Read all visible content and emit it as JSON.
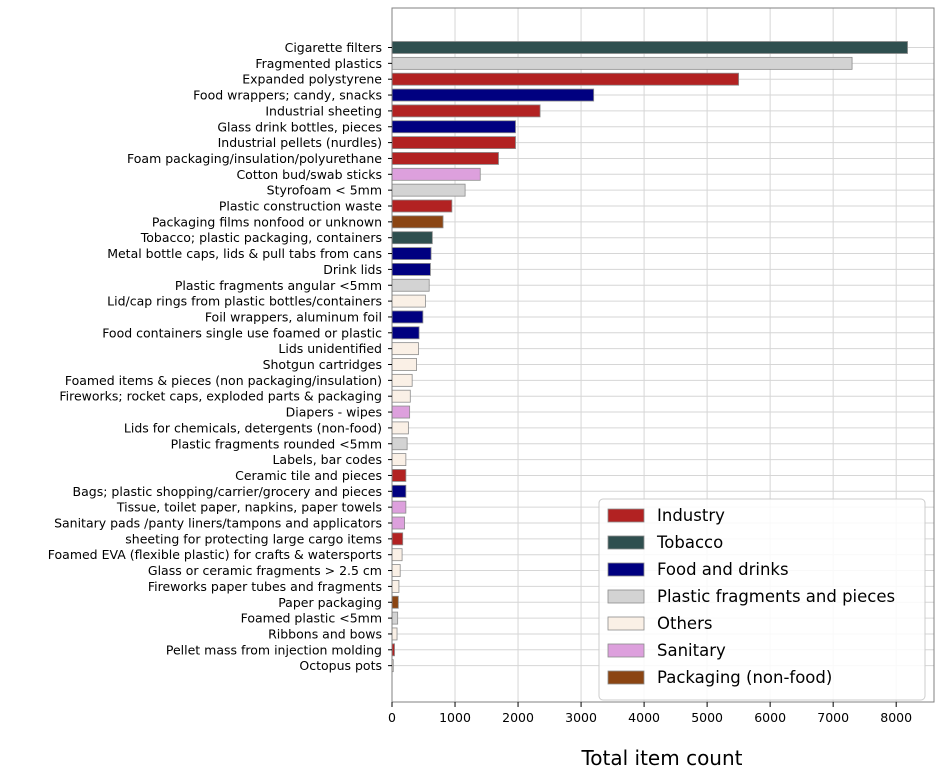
{
  "chart_data": {
    "type": "bar",
    "orientation": "horizontal",
    "xlabel": "Total item count",
    "xlim": [
      0,
      8600
    ],
    "xticks": [
      0,
      1000,
      2000,
      3000,
      4000,
      5000,
      6000,
      7000,
      8000
    ],
    "grid": true,
    "legend_position": "bottom-right",
    "groups": [
      {
        "name": "Industry",
        "color": "#b22222"
      },
      {
        "name": "Tobacco",
        "color": "#2f4f4f"
      },
      {
        "name": "Food and drinks",
        "color": "#000080"
      },
      {
        "name": "Plastic fragments and pieces",
        "color": "#d3d3d3"
      },
      {
        "name": "Others",
        "color": "#faf0e6"
      },
      {
        "name": "Sanitary",
        "color": "#dda0dd"
      },
      {
        "name": "Packaging (non-food)",
        "color": "#8b4513"
      }
    ],
    "bars": [
      {
        "label": "Cigarette filters",
        "value": 8180,
        "group": "Tobacco"
      },
      {
        "label": "Fragmented plastics",
        "value": 7300,
        "group": "Plastic fragments and pieces"
      },
      {
        "label": "Expanded polystyrene",
        "value": 5500,
        "group": "Industry"
      },
      {
        "label": "Food wrappers; candy, snacks",
        "value": 3200,
        "group": "Food and drinks"
      },
      {
        "label": "Industrial sheeting",
        "value": 2350,
        "group": "Industry"
      },
      {
        "label": "Glass drink bottles, pieces",
        "value": 1960,
        "group": "Food and drinks"
      },
      {
        "label": "Industrial pellets (nurdles)",
        "value": 1960,
        "group": "Industry"
      },
      {
        "label": "Foam packaging/insulation/polyurethane",
        "value": 1690,
        "group": "Industry"
      },
      {
        "label": "Cotton bud/swab sticks",
        "value": 1400,
        "group": "Sanitary"
      },
      {
        "label": "Styrofoam < 5mm",
        "value": 1160,
        "group": "Plastic fragments and pieces"
      },
      {
        "label": "Plastic construction waste",
        "value": 950,
        "group": "Industry"
      },
      {
        "label": "Packaging films nonfood or unknown",
        "value": 810,
        "group": "Packaging (non-food)"
      },
      {
        "label": "Tobacco; plastic packaging, containers",
        "value": 640,
        "group": "Tobacco"
      },
      {
        "label": "Metal bottle caps, lids & pull tabs from cans",
        "value": 620,
        "group": "Food and drinks"
      },
      {
        "label": "Drink lids",
        "value": 610,
        "group": "Food and drinks"
      },
      {
        "label": "Plastic fragments angular <5mm",
        "value": 590,
        "group": "Plastic fragments and pieces"
      },
      {
        "label": "Lid/cap rings from plastic bottles/containers",
        "value": 530,
        "group": "Others"
      },
      {
        "label": "Foil wrappers, aluminum foil",
        "value": 490,
        "group": "Food and drinks"
      },
      {
        "label": "Food containers single use foamed or plastic",
        "value": 430,
        "group": "Food and drinks"
      },
      {
        "label": "Lids unidentified",
        "value": 420,
        "group": "Others"
      },
      {
        "label": "Shotgun cartridges",
        "value": 390,
        "group": "Others"
      },
      {
        "label": "Foamed items & pieces (non packaging/insulation)",
        "value": 320,
        "group": "Others"
      },
      {
        "label": "Fireworks; rocket caps, exploded parts & packaging",
        "value": 290,
        "group": "Others"
      },
      {
        "label": "Diapers - wipes",
        "value": 280,
        "group": "Sanitary"
      },
      {
        "label": "Lids for chemicals, detergents (non-food)",
        "value": 260,
        "group": "Others"
      },
      {
        "label": "Plastic fragments rounded <5mm",
        "value": 240,
        "group": "Plastic fragments and pieces"
      },
      {
        "label": "Labels, bar codes",
        "value": 220,
        "group": "Others"
      },
      {
        "label": "Ceramic tile and pieces",
        "value": 220,
        "group": "Industry"
      },
      {
        "label": "Bags; plastic shopping/carrier/grocery and pieces",
        "value": 220,
        "group": "Food and drinks"
      },
      {
        "label": "Tissue, toilet paper, napkins, paper towels",
        "value": 220,
        "group": "Sanitary"
      },
      {
        "label": "Sanitary pads /panty liners/tampons and applicators",
        "value": 200,
        "group": "Sanitary"
      },
      {
        "label": "sheeting for protecting large cargo items",
        "value": 170,
        "group": "Industry"
      },
      {
        "label": "Foamed EVA (flexible plastic) for crafts & watersports",
        "value": 160,
        "group": "Others"
      },
      {
        "label": "Glass or ceramic fragments > 2.5 cm",
        "value": 130,
        "group": "Others"
      },
      {
        "label": "Fireworks paper tubes and fragments",
        "value": 110,
        "group": "Others"
      },
      {
        "label": "Paper packaging",
        "value": 100,
        "group": "Packaging (non-food)"
      },
      {
        "label": "Foamed  plastic <5mm",
        "value": 90,
        "group": "Plastic fragments and pieces"
      },
      {
        "label": "Ribbons and bows",
        "value": 80,
        "group": "Others"
      },
      {
        "label": "Pellet mass from injection molding",
        "value": 40,
        "group": "Industry"
      },
      {
        "label": "Octopus pots",
        "value": 20,
        "group": "Others"
      }
    ]
  }
}
